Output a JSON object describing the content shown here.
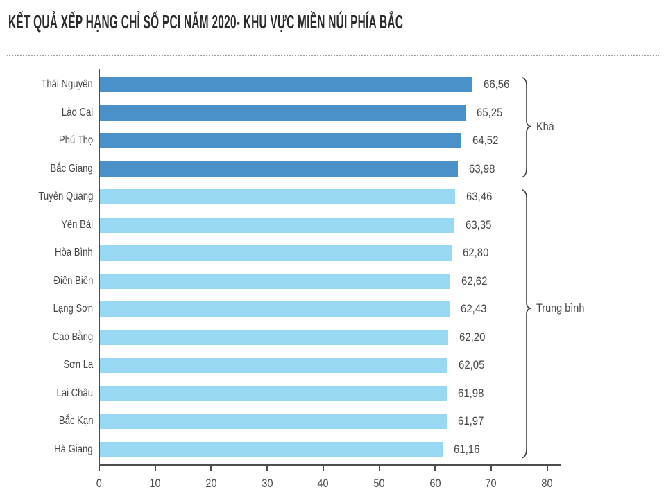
{
  "title": "KẾT QUẢ XẾP HẠNG CHỈ SỐ PCI NĂM 2020- KHU VỰC MIỀN NÚI PHÍA BẮC",
  "colors": {
    "bar_dark": "#4A90C9",
    "bar_light": "#99D8F2",
    "axis": "#4D4D4D",
    "text": "#474747",
    "title": "#2B2B2B",
    "bracket": "#3F3F3F"
  },
  "chart_data": {
    "type": "bar",
    "orientation": "horizontal",
    "title": "KẾT QUẢ XẾP HẠNG CHỈ SỐ PCI NĂM 2020- KHU VỰC MIỀN NÚI PHÍA BẮC",
    "categories": [
      "Thái Nguyên",
      "Lào Cai",
      "Phú Thọ",
      "Bắc Giang",
      "Tuyên Quang",
      "Yên Bái",
      "Hòa Bình",
      "Điện Biên",
      "Lạng Sơn",
      "Cao Bằng",
      "Sơn La",
      "Lai Châu",
      "Bắc Kạn",
      "Hà Giang"
    ],
    "values": [
      66.56,
      65.25,
      64.52,
      63.98,
      63.46,
      63.35,
      62.8,
      62.62,
      62.43,
      62.2,
      62.05,
      61.98,
      61.97,
      61.16
    ],
    "value_labels": [
      "66,56",
      "65,25",
      "64,52",
      "63,98",
      "63,46",
      "63,35",
      "62,80",
      "62,62",
      "62,43",
      "62,20",
      "62,05",
      "61,98",
      "61,97",
      "61,16"
    ],
    "x_ticks": [
      0,
      10,
      20,
      30,
      40,
      50,
      60,
      70,
      80
    ],
    "xlim": [
      0,
      83
    ],
    "grid": false,
    "legend_position": "none",
    "groups": [
      {
        "label": "Khá",
        "start_index": 0,
        "end_index": 3,
        "color": "#4A90C9"
      },
      {
        "label": "Trung bình",
        "start_index": 4,
        "end_index": 13,
        "color": "#99D8F2"
      }
    ]
  }
}
